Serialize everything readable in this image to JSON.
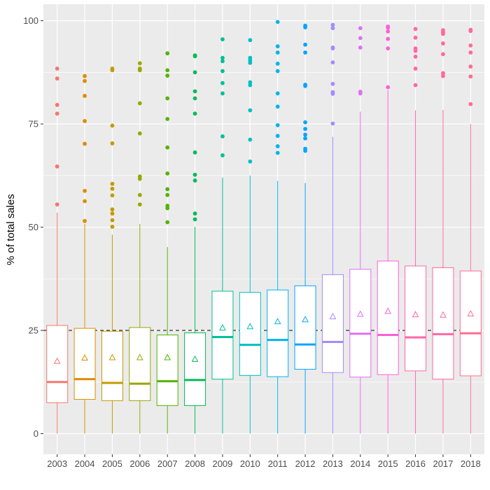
{
  "chart_data": {
    "type": "box",
    "title": "",
    "xlabel": "",
    "ylabel": "% of total sales",
    "ylim": [
      -5,
      104
    ],
    "y_ticks": [
      0,
      25,
      50,
      75,
      100
    ],
    "categories": [
      "2003",
      "2004",
      "2005",
      "2006",
      "2007",
      "2008",
      "2009",
      "2010",
      "2011",
      "2012",
      "2013",
      "2014",
      "2015",
      "2016",
      "2017",
      "2018"
    ],
    "reference_line": {
      "y": 25,
      "style": "dashed"
    },
    "grid": true,
    "legend": "none",
    "boxes": [
      {
        "x": "2003",
        "color": "#F8766D",
        "whisker_low": 0,
        "q1": 7.5,
        "median": 12.5,
        "q3": 26.2,
        "whisker_high": 53.5,
        "mean": 17.5,
        "outliers": [
          55.5,
          64.7,
          77.5,
          79.6,
          86,
          88.4
        ]
      },
      {
        "x": "2004",
        "color": "#DE8C00",
        "whisker_low": 0,
        "q1": 8.3,
        "median": 13.2,
        "q3": 25.5,
        "whisker_high": 50.8,
        "mean": 18.3,
        "outliers": [
          51.5,
          56.3,
          58.8,
          70.2,
          75.7,
          81.8,
          85.4,
          86.6
        ]
      },
      {
        "x": "2005",
        "color": "#C49A00",
        "whisker_low": 0,
        "q1": 8,
        "median": 12.3,
        "q3": 24.8,
        "whisker_high": 48.2,
        "mean": 18.4,
        "outliers": [
          50.1,
          51.7,
          53.3,
          54.3,
          57.7,
          59.3,
          60.5,
          70.3,
          74.6,
          88,
          88.4
        ]
      },
      {
        "x": "2006",
        "color": "#99A800",
        "whisker_low": 0,
        "q1": 8,
        "median": 12.1,
        "q3": 25.7,
        "whisker_high": 50.8,
        "mean": 18.4,
        "outliers": [
          55.5,
          57.8,
          61.7,
          62.3,
          72.7,
          80,
          88,
          88.4,
          89.7
        ]
      },
      {
        "x": "2007",
        "color": "#53B400",
        "whisker_low": 0,
        "q1": 6.8,
        "median": 12.7,
        "q3": 23.9,
        "whisker_high": 45.2,
        "mean": 18.4,
        "outliers": [
          51.2,
          54.6,
          55.2,
          57.8,
          59.2,
          63,
          69.3,
          76.2,
          81.2,
          86.7,
          88,
          92.1
        ]
      },
      {
        "x": "2008",
        "color": "#00BC56",
        "whisker_low": 0,
        "q1": 6.8,
        "median": 13,
        "q3": 24.4,
        "whisker_high": 50.1,
        "mean": 18,
        "outliers": [
          51.9,
          53.3,
          61.3,
          62.7,
          68.1,
          77.5,
          81.2,
          82.9,
          87.5,
          91.4,
          91.6
        ]
      },
      {
        "x": "2009",
        "color": "#00C094",
        "whisker_low": 0,
        "q1": 13.2,
        "median": 23.4,
        "q3": 34.5,
        "whisker_high": 62,
        "mean": 25.6,
        "outliers": [
          67.4,
          72,
          82.4,
          84.9,
          87.8,
          90.2,
          91,
          95.5
        ]
      },
      {
        "x": "2010",
        "color": "#00BFC4",
        "whisker_low": 0,
        "q1": 14.1,
        "median": 21.5,
        "q3": 34.2,
        "whisker_high": 62.5,
        "mean": 25.9,
        "outliers": [
          65.9,
          71.2,
          78.3,
          84.4,
          85.1,
          89.8,
          90.4,
          91,
          95.3
        ]
      },
      {
        "x": "2011",
        "color": "#00B6EB",
        "whisker_low": 0,
        "q1": 13.8,
        "median": 22.7,
        "q3": 34.8,
        "whisker_high": 61.2,
        "mean": 27.1,
        "outliers": [
          68,
          69.6,
          72.1,
          74.7,
          79.2,
          82.4,
          87.8,
          89.6,
          92.3,
          93.8,
          99.7
        ]
      },
      {
        "x": "2012",
        "color": "#06A4FF",
        "whisker_low": 0,
        "q1": 15.6,
        "median": 21.6,
        "q3": 35.8,
        "whisker_high": 60.7,
        "mean": 27.6,
        "outliers": [
          68.5,
          69,
          71.5,
          72.4,
          73.8,
          75.4,
          84.2,
          84.5,
          92.3,
          94.2,
          98.4,
          98.8
        ]
      },
      {
        "x": "2013",
        "color": "#A58AFF",
        "whisker_low": 0,
        "q1": 14.8,
        "median": 22.2,
        "q3": 38.5,
        "whisker_high": 71.9,
        "mean": 28.3,
        "outliers": [
          75.1,
          82.3,
          82.7,
          84.7,
          89.9,
          93.3,
          93.5,
          98.2,
          99
        ]
      },
      {
        "x": "2014",
        "color": "#DF70F8",
        "whisker_low": 0,
        "q1": 13.7,
        "median": 24.2,
        "q3": 39.8,
        "whisker_high": 78,
        "mean": 28.9,
        "outliers": [
          82.4,
          82.8,
          93.5,
          95.8,
          98.2
        ]
      },
      {
        "x": "2015",
        "color": "#FB61D7",
        "whisker_low": 0,
        "q1": 14.3,
        "median": 23.9,
        "q3": 41.8,
        "whisker_high": 83.2,
        "mean": 29.6,
        "outliers": [
          83.9,
          93.3,
          95.6,
          97.4,
          98.3,
          98.6
        ]
      },
      {
        "x": "2016",
        "color": "#FF66A8",
        "whisker_low": 0,
        "q1": 15.2,
        "median": 23.3,
        "q3": 40.6,
        "whisker_high": 78.3,
        "mean": 28.8,
        "outliers": [
          84.4,
          88.4,
          91.3,
          92.7,
          93.3,
          95.9,
          98
        ]
      },
      {
        "x": "2017",
        "color": "#FF689F",
        "whisker_low": 0,
        "q1": 13.2,
        "median": 24.1,
        "q3": 40.2,
        "whisker_high": 78.4,
        "mean": 28.7,
        "outliers": [
          86.6,
          87.3,
          91.9,
          94.5,
          96.8,
          97.2,
          97.7
        ]
      },
      {
        "x": "2018",
        "color": "#FF6C91",
        "whisker_low": 0,
        "q1": 14,
        "median": 24.3,
        "q3": 39.4,
        "whisker_high": 75,
        "mean": 29,
        "outliers": [
          79.8,
          86.5,
          88.9,
          92.3,
          94,
          97.5,
          97.8
        ]
      }
    ]
  }
}
